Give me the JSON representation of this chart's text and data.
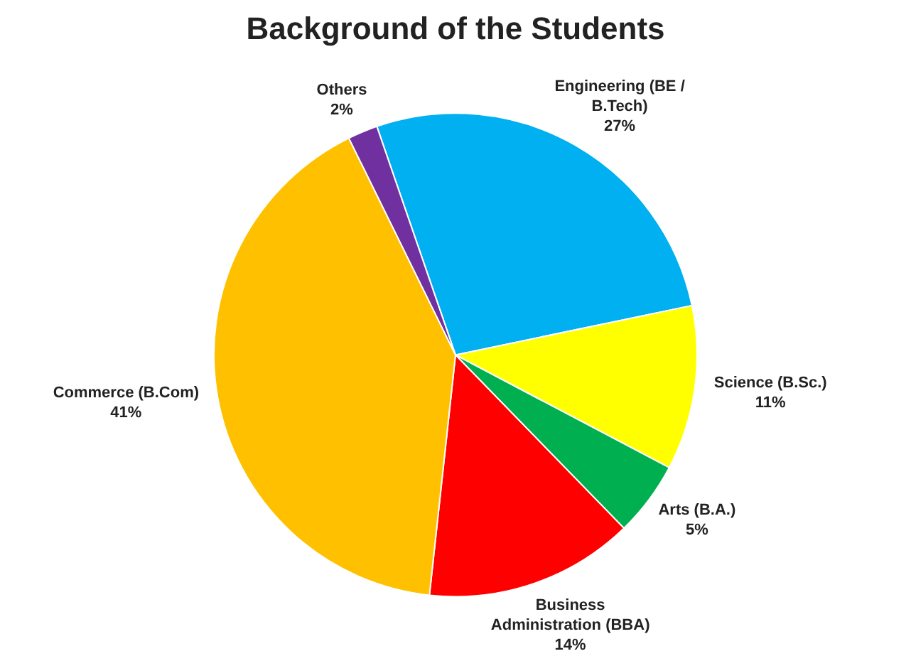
{
  "chart_data": {
    "type": "pie",
    "title": "Background of the Students",
    "categories": [
      "Engineering (BE / B.Tech)",
      "Science (B.Sc.)",
      "Arts (B.A.)",
      "Business Administration (BBA)",
      "Commerce (B.Com)",
      "Others"
    ],
    "values": [
      27,
      11,
      5,
      14,
      41,
      2
    ],
    "colors": [
      "#00b0f0",
      "#ffff00",
      "#00b050",
      "#ff0000",
      "#ffc000",
      "#7030a0"
    ],
    "value_labels": [
      "27%",
      "11%",
      "5%",
      "14%",
      "41%",
      "2%"
    ],
    "legend": false
  }
}
